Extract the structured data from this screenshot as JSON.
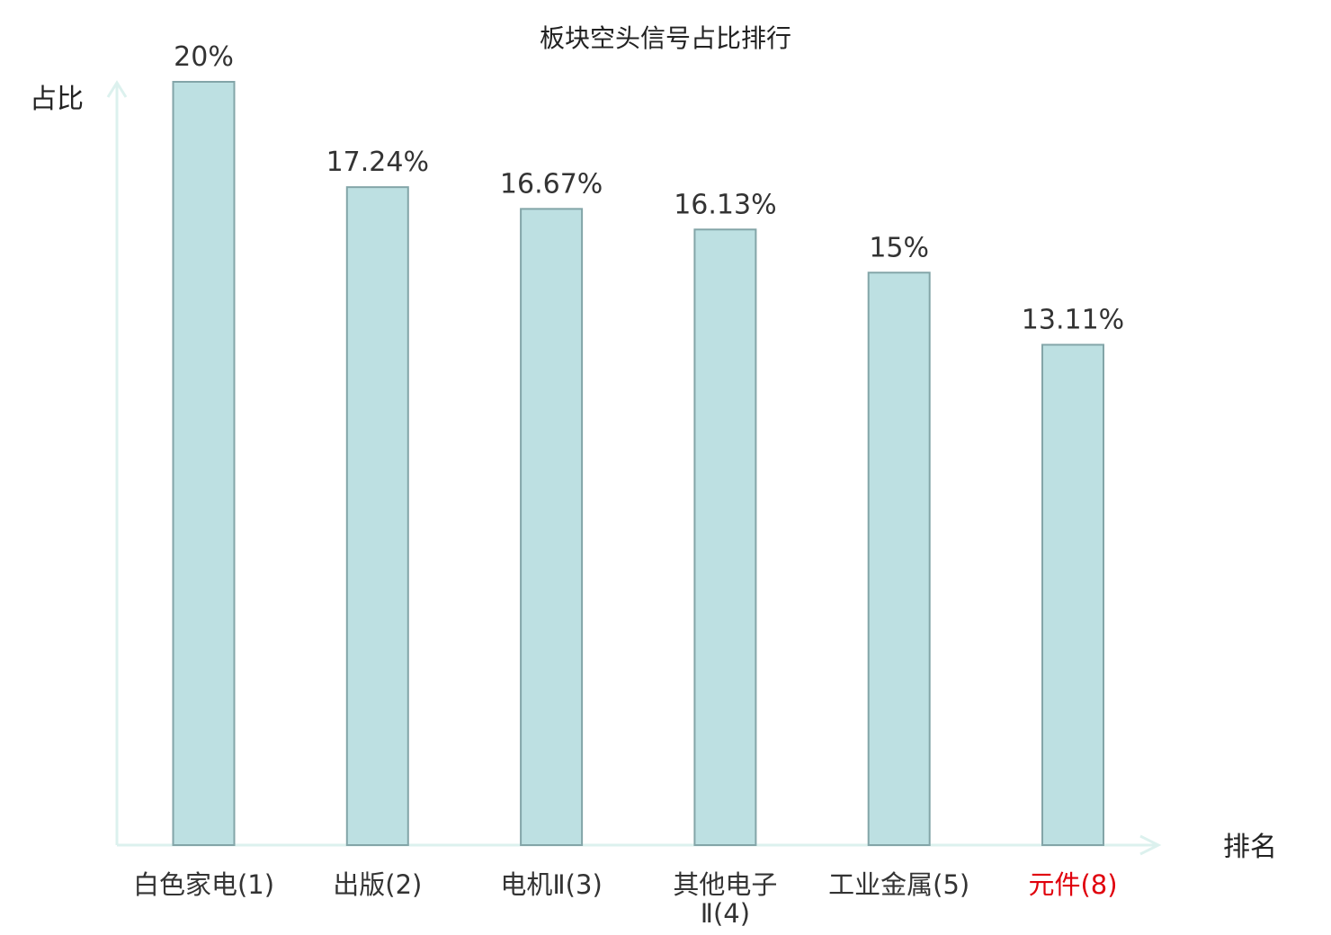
{
  "chart_data": {
    "type": "bar",
    "title": "板块空头信号占比排行",
    "ylabel": "占比",
    "xlabel": "排名",
    "categories": [
      [
        "白色家电(1)"
      ],
      [
        "出版(2)"
      ],
      [
        "电机Ⅱ(3)"
      ],
      [
        "其他电子",
        "Ⅱ(4)"
      ],
      [
        "工业金属(5)"
      ],
      [
        "元件(8)"
      ]
    ],
    "values": [
      20,
      17.24,
      16.67,
      16.13,
      15,
      13.11
    ],
    "value_labels": [
      "20%",
      "17.24%",
      "16.67%",
      "16.13%",
      "15%",
      "13.11%"
    ],
    "highlight_index": 5,
    "ylim": [
      0,
      20
    ],
    "grid": false,
    "colors": {
      "bar_fill": "#bde0e2",
      "bar_stroke": "#83a5a8",
      "axis": "#dcf1ee",
      "category_text": "#333333",
      "highlight_text": "#e0000c"
    }
  }
}
